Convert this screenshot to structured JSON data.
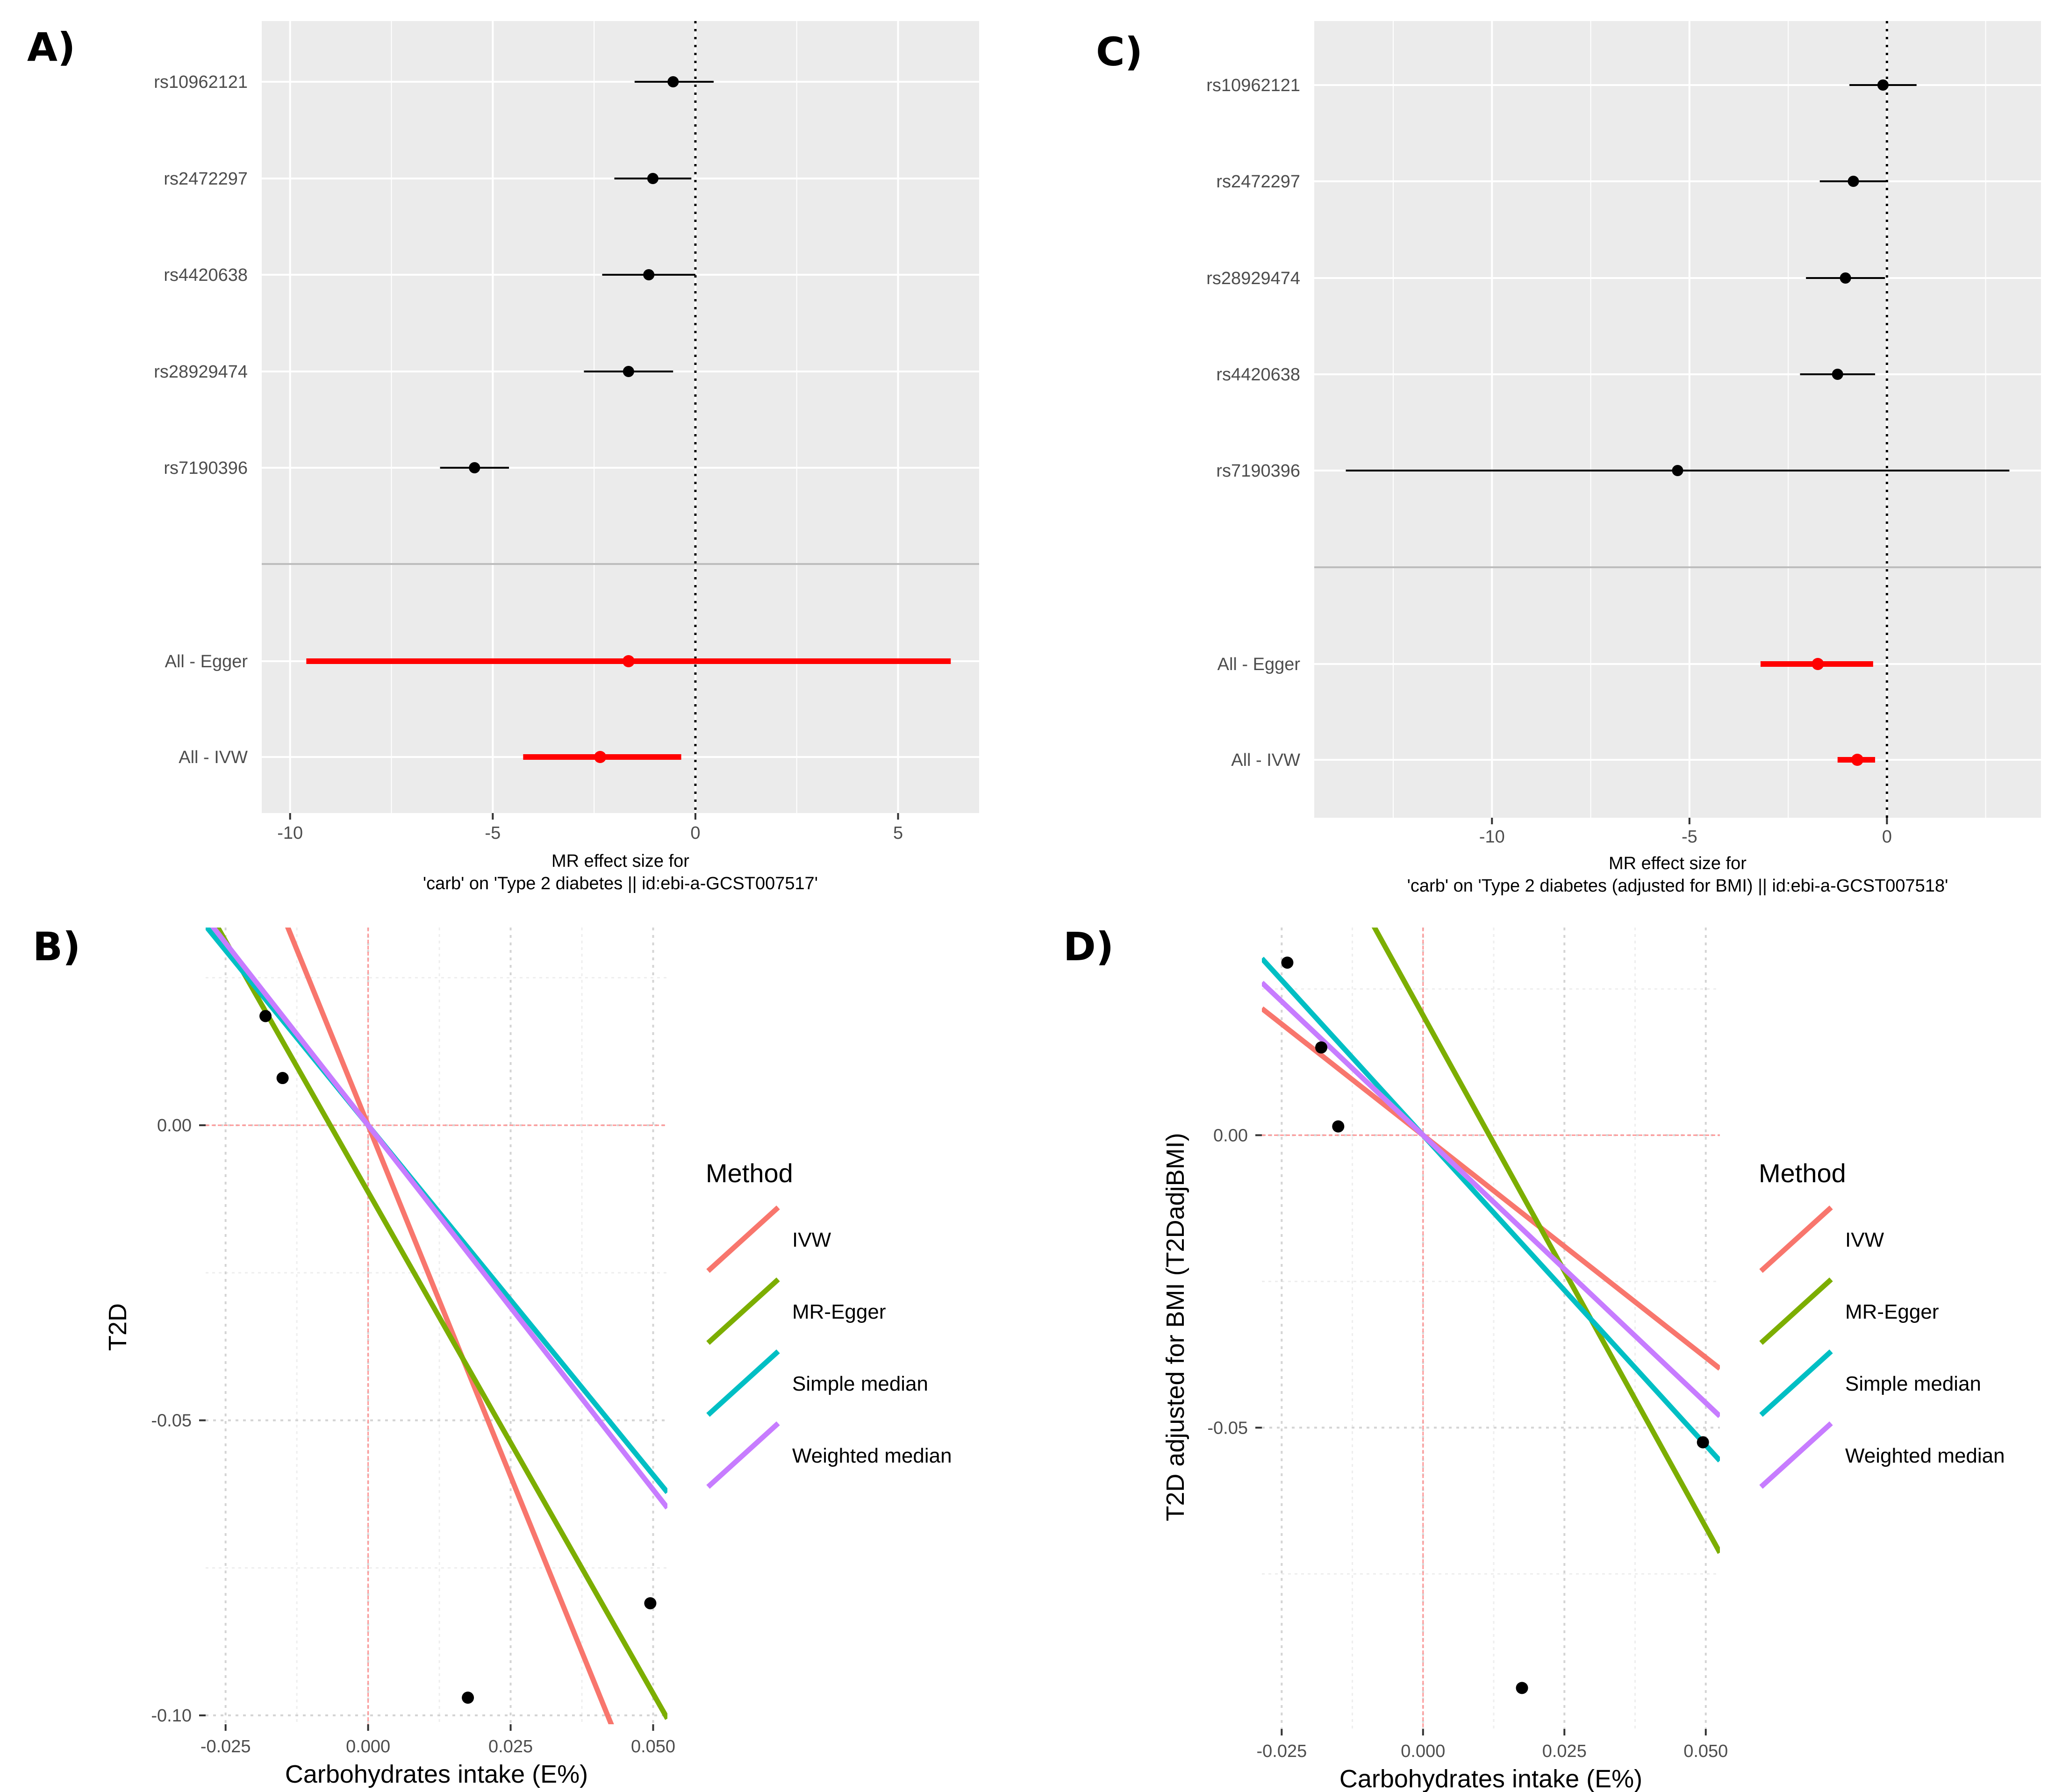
{
  "chart_data": [
    {
      "panel": "A)",
      "type": "scatter",
      "xlabel": [
        "MR effect size for",
        "'carb' on 'Type 2 diabetes || id:ebi-a-GCST007517'"
      ],
      "xlim": [
        -10.7,
        7.0
      ],
      "xticks": [
        -10,
        -5,
        0,
        5
      ],
      "snps": [
        {
          "label": "rs10962121",
          "b": -0.55,
          "lo": -1.5,
          "hi": 0.45
        },
        {
          "label": "rs2472297",
          "b": -1.05,
          "lo": -2.0,
          "hi": -0.1
        },
        {
          "label": "rs4420638",
          "b": -1.15,
          "lo": -2.3,
          "hi": 0.0
        },
        {
          "label": "rs28929474",
          "b": -1.65,
          "lo": -2.75,
          "hi": -0.55
        },
        {
          "label": "rs7190396",
          "b": -5.45,
          "lo": -6.3,
          "hi": -4.6
        }
      ],
      "summary": [
        {
          "label": "All - Egger",
          "b": -1.65,
          "lo": -9.6,
          "hi": 6.3
        },
        {
          "label": "All - IVW",
          "b": -2.35,
          "lo": -4.25,
          "hi": -0.35
        }
      ]
    },
    {
      "panel": "C)",
      "type": "scatter",
      "xlabel": [
        "MR effect size for",
        "'carb' on 'Type 2 diabetes (adjusted for BMI) || id:ebi-a-GCST007518'"
      ],
      "xlim": [
        -14.5,
        3.9
      ],
      "xticks": [
        -10,
        -5,
        0
      ],
      "snps": [
        {
          "label": "rs10962121",
          "b": -0.1,
          "lo": -0.95,
          "hi": 0.75
        },
        {
          "label": "rs2472297",
          "b": -0.85,
          "lo": -1.7,
          "hi": 0.0
        },
        {
          "label": "rs28929474",
          "b": -1.05,
          "lo": -2.05,
          "hi": -0.05
        },
        {
          "label": "rs4420638",
          "b": -1.25,
          "lo": -2.2,
          "hi": -0.3
        },
        {
          "label": "rs7190396",
          "b": -5.3,
          "lo": -13.7,
          "hi": 3.1
        }
      ],
      "summary": [
        {
          "label": "All - Egger",
          "b": -1.75,
          "lo": -3.2,
          "hi": -0.35
        },
        {
          "label": "All - IVW",
          "b": -0.75,
          "lo": -1.25,
          "hi": -0.3
        }
      ]
    },
    {
      "panel": "B)",
      "type": "scatter",
      "xlabel": "Carbohydrates intake (E%)",
      "ylabel": "T2D",
      "xlim": [
        -0.0285,
        0.0525
      ],
      "ylim": [
        -0.1015,
        0.0335
      ],
      "xticks": [
        -0.025,
        0.0,
        0.025,
        0.05
      ],
      "xtick_labels": [
        "-0.025",
        "0.000",
        "0.025",
        "0.050"
      ],
      "yticks": [
        0.0,
        -0.05,
        -0.1
      ],
      "ytick_labels": [
        "0.00",
        "-0.05",
        "-0.10"
      ],
      "points": [
        {
          "x": -0.018,
          "y": 0.0185
        },
        {
          "x": -0.015,
          "y": 0.008
        },
        {
          "x": 0.0175,
          "y": -0.097
        },
        {
          "x": 0.0495,
          "y": -0.081
        }
      ],
      "lines": [
        {
          "method": "IVW",
          "slope": -2.38,
          "intercept": 0.0
        },
        {
          "method": "MR-Egger",
          "slope": -1.7,
          "intercept": -0.0113
        },
        {
          "method": "Simple median",
          "slope": -1.185,
          "intercept": 0.0
        },
        {
          "method": "Weighted median",
          "slope": -1.235,
          "intercept": 0.0
        }
      ]
    },
    {
      "panel": "D)",
      "type": "scatter",
      "xlabel": "Carbohydrates intake (E%)",
      "ylabel": "T2D adjusted for BMI (T2DadjBMI)",
      "xlim": [
        -0.0285,
        0.0525
      ],
      "ylim": [
        -0.1015,
        0.0355
      ],
      "xticks": [
        -0.025,
        0.0,
        0.025,
        0.05
      ],
      "xtick_labels": [
        "-0.025",
        "0.000",
        "0.025",
        "0.050"
      ],
      "yticks": [
        0.0,
        -0.05
      ],
      "ytick_labels": [
        "0.00",
        "-0.05"
      ],
      "points": [
        {
          "x": -0.024,
          "y": 0.0295
        },
        {
          "x": -0.018,
          "y": 0.015
        },
        {
          "x": -0.015,
          "y": 0.0015
        },
        {
          "x": 0.0175,
          "y": -0.0945
        },
        {
          "x": 0.0495,
          "y": -0.0525
        }
      ],
      "lines": [
        {
          "method": "IVW",
          "slope": -0.76,
          "intercept": 0.0
        },
        {
          "method": "MR-Egger",
          "slope": -1.75,
          "intercept": 0.0205
        },
        {
          "method": "Simple median",
          "slope": -1.06,
          "intercept": 0.0
        },
        {
          "method": "Weighted median",
          "slope": -0.915,
          "intercept": 0.0
        }
      ]
    }
  ],
  "legend": {
    "title": "Method",
    "entries": [
      {
        "label": "IVW",
        "color": "#F8766D"
      },
      {
        "label": "MR-Egger",
        "color": "#7CAE00"
      },
      {
        "label": "Simple median",
        "color": "#00BFC4"
      },
      {
        "label": "Weighted median",
        "color": "#C77CFF"
      }
    ]
  },
  "colors": {
    "snp": "#000000",
    "summary": "#FF0000",
    "panel_bg": "#EBEBEB",
    "zero_line": "#FF9999"
  }
}
